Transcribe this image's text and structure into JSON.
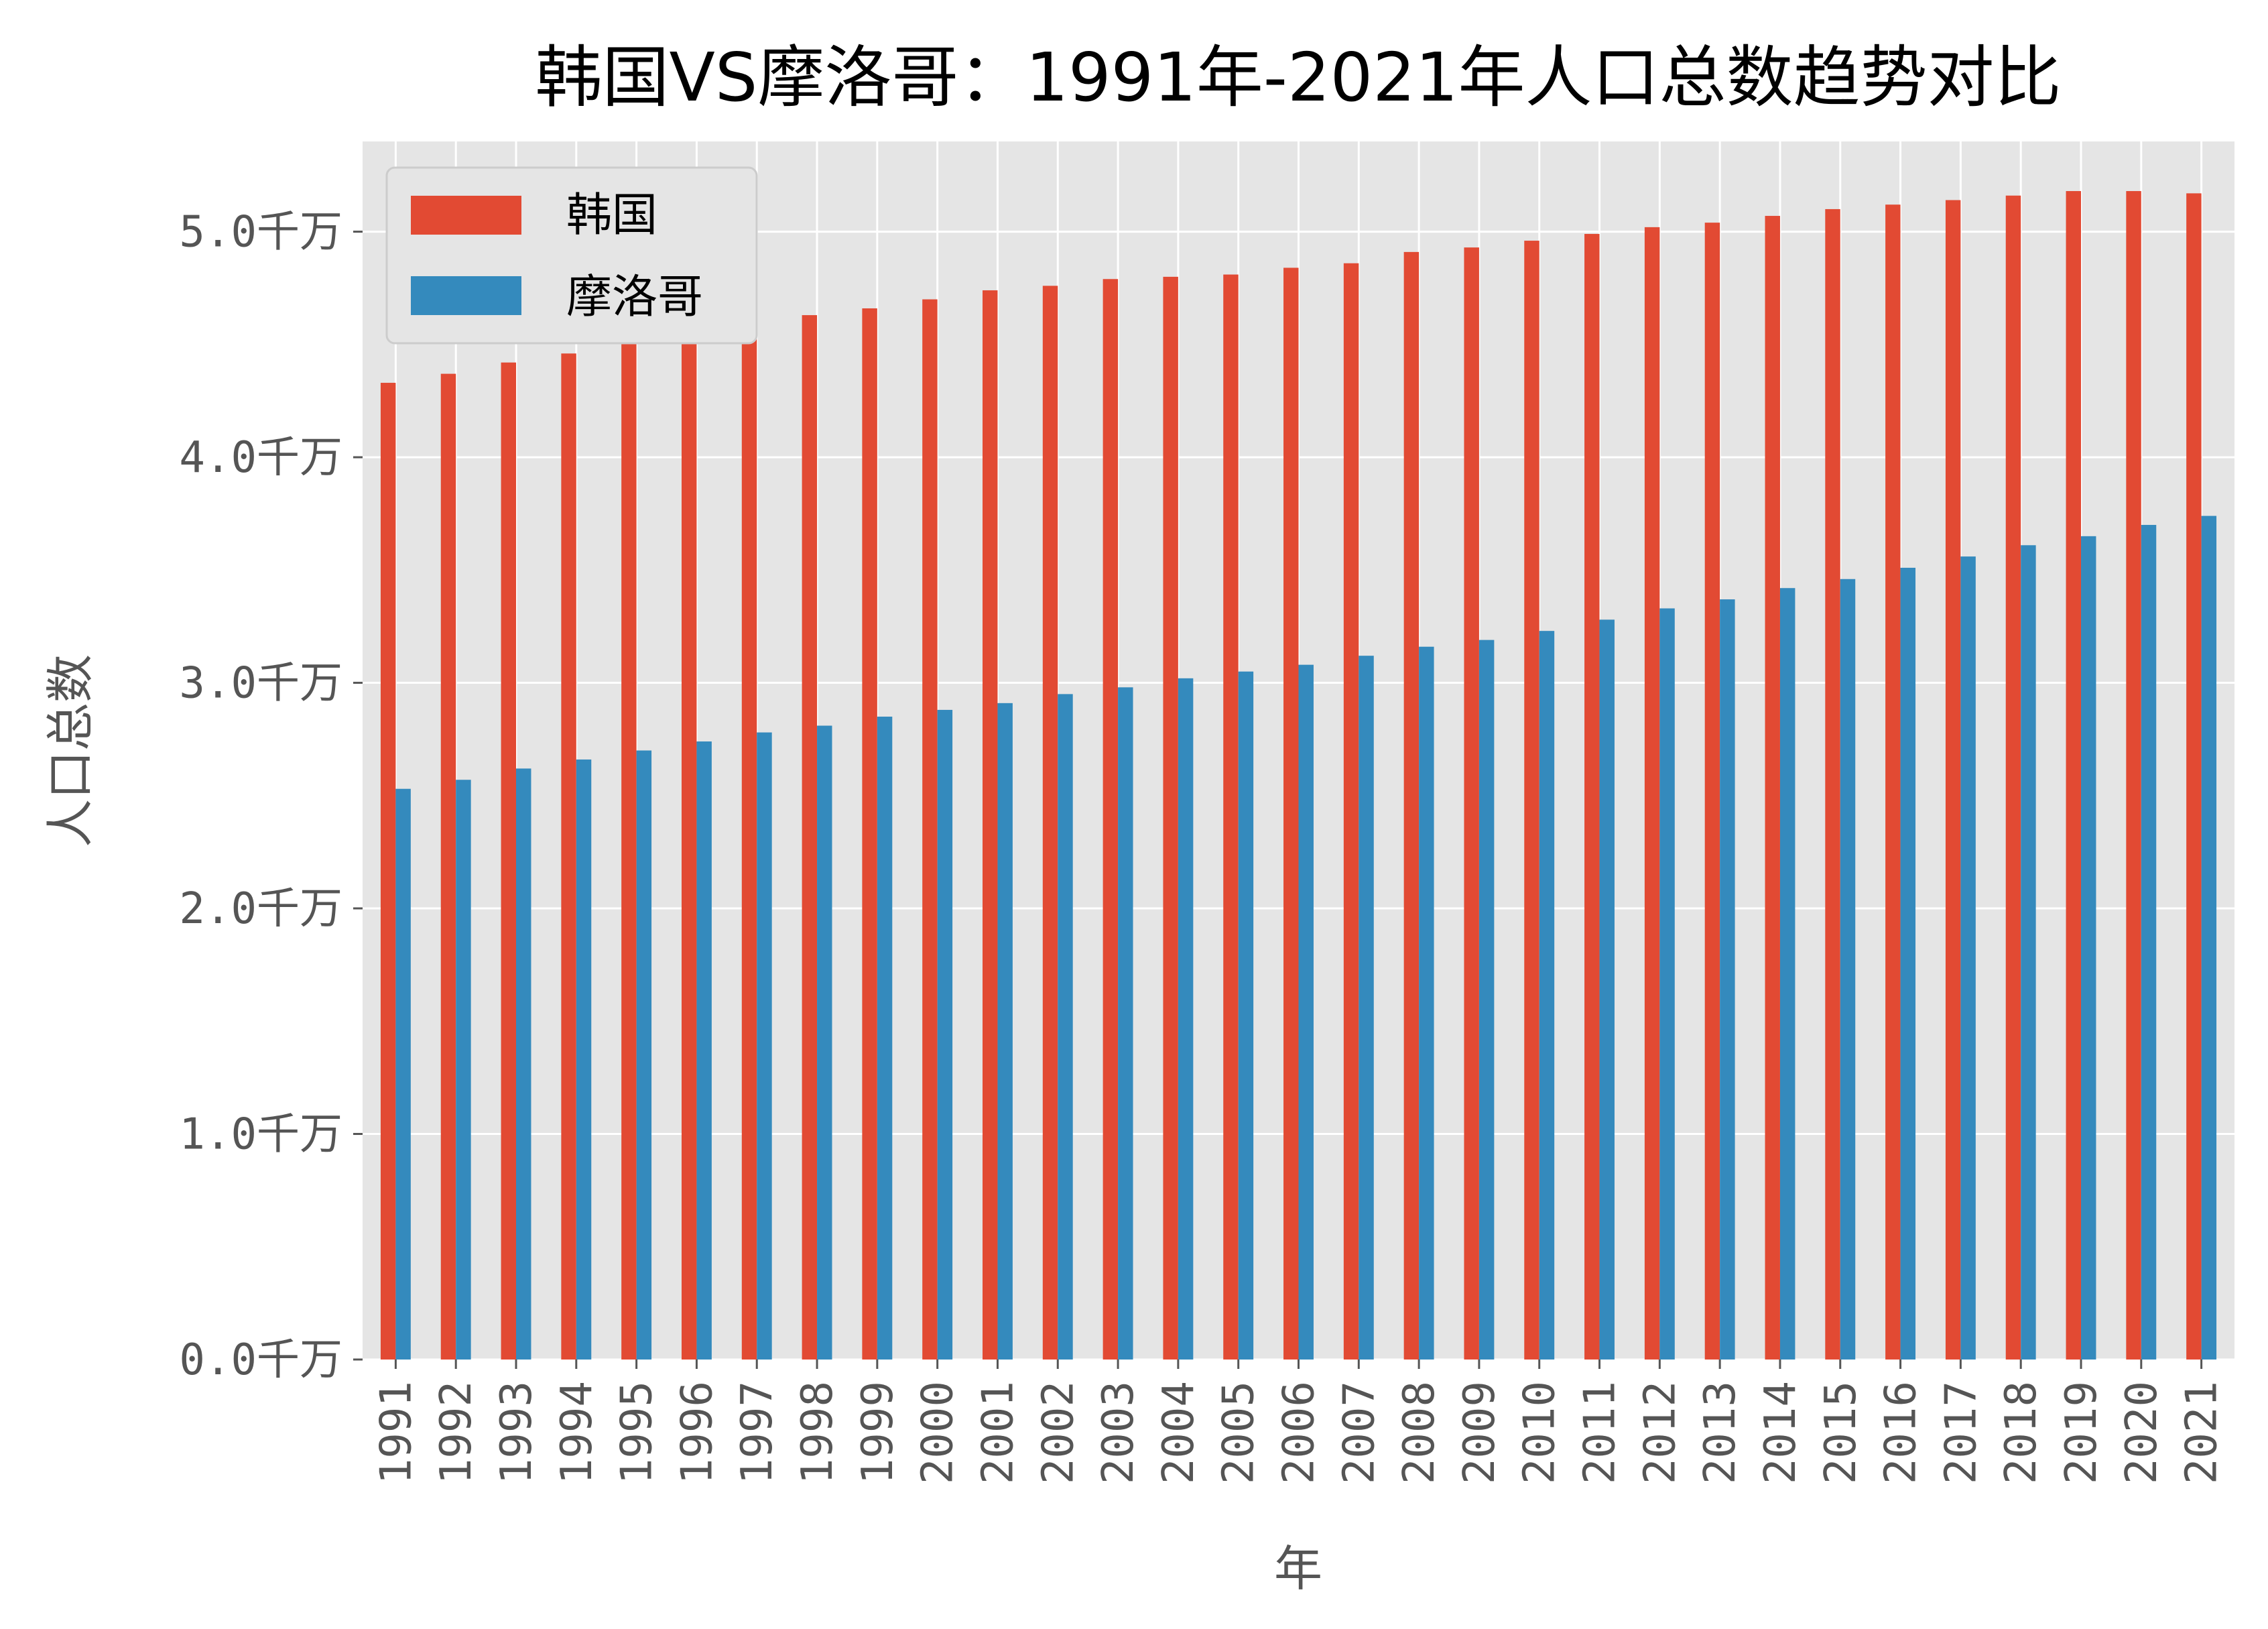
{
  "chart_data": {
    "type": "bar",
    "title": "韩国VS摩洛哥：1991年-2021年人口总数趋势对比",
    "xlabel": "年",
    "ylabel": "人口总数",
    "ylim": [
      0,
      5.4
    ],
    "yticks": [
      {
        "value": 0,
        "label": "0.0千万"
      },
      {
        "value": 1,
        "label": "1.0千万"
      },
      {
        "value": 2,
        "label": "2.0千万"
      },
      {
        "value": 3,
        "label": "3.0千万"
      },
      {
        "value": 4,
        "label": "4.0千万"
      },
      {
        "value": 5,
        "label": "5.0千万"
      }
    ],
    "grid": true,
    "legend_position": "top-left",
    "categories": [
      "1991",
      "1992",
      "1993",
      "1994",
      "1995",
      "1996",
      "1997",
      "1998",
      "1999",
      "2000",
      "2001",
      "2002",
      "2003",
      "2004",
      "2005",
      "2006",
      "2007",
      "2008",
      "2009",
      "2010",
      "2011",
      "2012",
      "2013",
      "2014",
      "2015",
      "2016",
      "2017",
      "2018",
      "2019",
      "2020",
      "2021"
    ],
    "series": [
      {
        "name": "韩国",
        "color": "#E24A33",
        "values": [
          4.33,
          4.37,
          4.42,
          4.46,
          4.51,
          4.55,
          4.59,
          4.63,
          4.66,
          4.7,
          4.74,
          4.76,
          4.79,
          4.8,
          4.81,
          4.84,
          4.86,
          4.91,
          4.93,
          4.96,
          4.99,
          5.02,
          5.04,
          5.07,
          5.1,
          5.12,
          5.14,
          5.16,
          5.18,
          5.18,
          5.17
        ]
      },
      {
        "name": "摩洛哥",
        "color": "#348ABD",
        "values": [
          2.53,
          2.57,
          2.62,
          2.66,
          2.7,
          2.74,
          2.78,
          2.81,
          2.85,
          2.88,
          2.91,
          2.95,
          2.98,
          3.02,
          3.05,
          3.08,
          3.12,
          3.16,
          3.19,
          3.23,
          3.28,
          3.33,
          3.37,
          3.42,
          3.46,
          3.51,
          3.56,
          3.61,
          3.65,
          3.7,
          3.74
        ]
      }
    ]
  }
}
